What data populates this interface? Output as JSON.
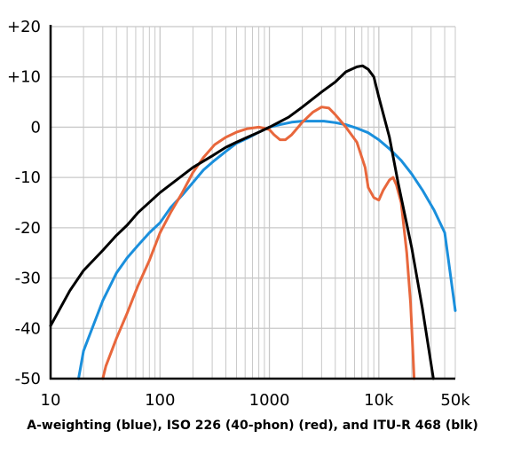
{
  "chart_data": {
    "type": "line",
    "caption": "A-weighting (blue), ISO 226 (40-phon) (red), and ITU-R 468 (blk)",
    "x_scale": "log",
    "xlim": [
      10,
      50000
    ],
    "ylim": [
      -50,
      20
    ],
    "x_ticks": [
      {
        "value": 10,
        "label": "10"
      },
      {
        "value": 100,
        "label": "100"
      },
      {
        "value": 1000,
        "label": "1000"
      },
      {
        "value": 10000,
        "label": "10k"
      },
      {
        "value": 50000,
        "label": "50k"
      }
    ],
    "y_ticks": [
      {
        "value": 20,
        "label": "+20"
      },
      {
        "value": 10,
        "label": "+10"
      },
      {
        "value": 0,
        "label": "0"
      },
      {
        "value": -10,
        "label": "-10"
      },
      {
        "value": -20,
        "label": "-20"
      },
      {
        "value": -30,
        "label": "-30"
      },
      {
        "value": -40,
        "label": "-40"
      },
      {
        "value": -50,
        "label": "-50"
      }
    ],
    "grid": true,
    "series": [
      {
        "color": "#1a8fdc",
        "points": [
          [
            18,
            -50
          ],
          [
            20,
            -44.5
          ],
          [
            30,
            -34.5
          ],
          [
            40,
            -29
          ],
          [
            50,
            -26
          ],
          [
            63,
            -23.5
          ],
          [
            80,
            -21
          ],
          [
            100,
            -19
          ],
          [
            125,
            -16
          ],
          [
            160,
            -13.5
          ],
          [
            200,
            -11
          ],
          [
            250,
            -8.5
          ],
          [
            315,
            -6.6
          ],
          [
            400,
            -4.8
          ],
          [
            500,
            -3.2
          ],
          [
            630,
            -2.2
          ],
          [
            800,
            -1
          ],
          [
            1000,
            0
          ],
          [
            1250,
            0.5
          ],
          [
            1600,
            1
          ],
          [
            2000,
            1.2
          ],
          [
            2500,
            1.2
          ],
          [
            3150,
            1.2
          ],
          [
            4000,
            0.9
          ],
          [
            5000,
            0.5
          ],
          [
            6300,
            -0.2
          ],
          [
            8000,
            -1.1
          ],
          [
            10000,
            -2.5
          ],
          [
            12500,
            -4.3
          ],
          [
            16000,
            -6.6
          ],
          [
            20000,
            -9.3
          ],
          [
            25000,
            -12.5
          ],
          [
            32000,
            -16.5
          ],
          [
            40000,
            -21
          ],
          [
            50000,
            -36.5
          ]
        ]
      },
      {
        "color": "#e8673c",
        "points": [
          [
            30,
            -50
          ],
          [
            32,
            -47.5
          ],
          [
            40,
            -42
          ],
          [
            50,
            -37
          ],
          [
            63,
            -31.5
          ],
          [
            80,
            -26.5
          ],
          [
            100,
            -21
          ],
          [
            125,
            -17
          ],
          [
            160,
            -13
          ],
          [
            200,
            -9
          ],
          [
            250,
            -6
          ],
          [
            315,
            -3.5
          ],
          [
            400,
            -2
          ],
          [
            500,
            -1
          ],
          [
            630,
            -0.3
          ],
          [
            800,
            0
          ],
          [
            900,
            -0.2
          ],
          [
            1000,
            -0.5
          ],
          [
            1100,
            -1.5
          ],
          [
            1250,
            -2.5
          ],
          [
            1400,
            -2.5
          ],
          [
            1600,
            -1.5
          ],
          [
            2000,
            1
          ],
          [
            2500,
            3
          ],
          [
            3000,
            4
          ],
          [
            3500,
            3.8
          ],
          [
            4000,
            2.5
          ],
          [
            5000,
            0
          ],
          [
            6300,
            -3
          ],
          [
            7500,
            -8
          ],
          [
            8000,
            -12
          ],
          [
            9000,
            -14
          ],
          [
            10000,
            -14.5
          ],
          [
            11000,
            -12.5
          ],
          [
            12500,
            -10.5
          ],
          [
            13500,
            -10
          ],
          [
            14500,
            -11.5
          ],
          [
            16000,
            -15
          ],
          [
            18000,
            -25
          ],
          [
            19500,
            -35
          ],
          [
            20500,
            -45
          ],
          [
            21000,
            -50
          ]
        ]
      },
      {
        "color": "#000000",
        "points": [
          [
            10,
            -39.5
          ],
          [
            15,
            -32.5
          ],
          [
            20,
            -28.5
          ],
          [
            30,
            -24.5
          ],
          [
            40,
            -21.5
          ],
          [
            50,
            -19.5
          ],
          [
            63,
            -17
          ],
          [
            100,
            -13
          ],
          [
            200,
            -8
          ],
          [
            300,
            -5.7
          ],
          [
            400,
            -4
          ],
          [
            500,
            -3
          ],
          [
            630,
            -2
          ],
          [
            800,
            -1
          ],
          [
            1000,
            0
          ],
          [
            1500,
            2
          ],
          [
            2000,
            4
          ],
          [
            3000,
            7
          ],
          [
            4000,
            9
          ],
          [
            5000,
            11
          ],
          [
            6300,
            12
          ],
          [
            7100,
            12.2
          ],
          [
            8000,
            11.5
          ],
          [
            9000,
            10
          ],
          [
            10000,
            6
          ],
          [
            12500,
            -2
          ],
          [
            15000,
            -11
          ],
          [
            20000,
            -24
          ],
          [
            25000,
            -36
          ],
          [
            31500,
            -50
          ]
        ]
      }
    ]
  }
}
